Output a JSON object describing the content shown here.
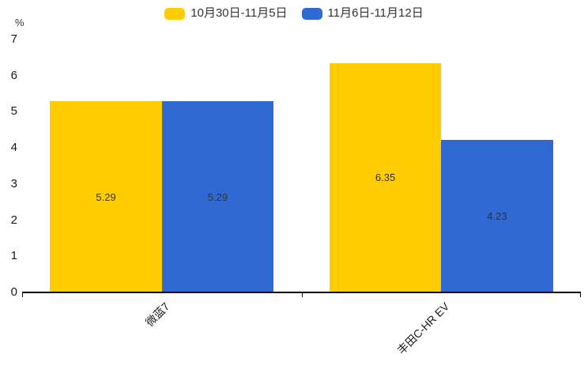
{
  "chart_data": {
    "type": "bar",
    "title": "",
    "categories": [
      "微蓝7",
      "丰田C-HR EV"
    ],
    "series": [
      {
        "name": "10月30日-11月5日",
        "color": "#FFCC00",
        "values": [
          5.29,
          6.35
        ],
        "labels": [
          "5.29",
          "6.35"
        ]
      },
      {
        "name": "11月6日-11月12日",
        "color": "#3069D1",
        "values": [
          5.29,
          4.23
        ],
        "labels": [
          "5.29",
          "4.23"
        ]
      }
    ],
    "xlabel": "",
    "ylabel": "%",
    "ylim": [
      0,
      7
    ],
    "yticks": [
      0,
      1,
      2,
      3,
      4,
      5,
      6,
      7
    ],
    "grid": false,
    "legend_position": "top-center",
    "value_label_color": "#333333",
    "axis_color": "#000000",
    "background_color": "#ffffff",
    "xlabel_rotation_deg": 45
  }
}
